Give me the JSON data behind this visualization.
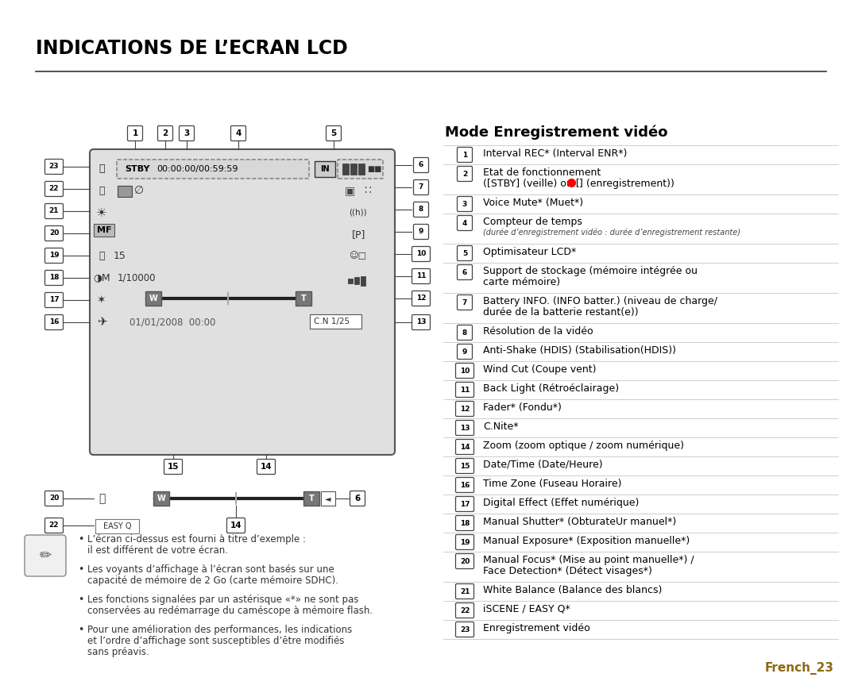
{
  "title": "INDICATIONS DE L’ECRAN LCD",
  "section_title": "Mode Enregistrement vidéo",
  "bg_color": "#ffffff",
  "title_color": "#000000",
  "footer_text": "French_23",
  "footer_color": "#8B6914",
  "items": [
    {
      "num": "1",
      "text1": "Interval REC* (Interval ENR*)",
      "text2": ""
    },
    {
      "num": "2",
      "text1": "Etat de fonctionnement",
      "text2": "([STBY] (veille) ou [●] (enregistrement))"
    },
    {
      "num": "3",
      "text1": "Voice Mute* (Muet*)",
      "text2": ""
    },
    {
      "num": "4",
      "text1": "Compteur de temps",
      "text2": "(durée d’enregistrement vidéo : durée d’enregistrement restante)"
    },
    {
      "num": "5",
      "text1": "Optimisateur LCD*",
      "text2": ""
    },
    {
      "num": "6",
      "text1": "Support de stockage (mémoire intégrée ou",
      "text2": "carte mémoire)"
    },
    {
      "num": "7",
      "text1": "Battery INFO. (INFO batter.) (niveau de charge/",
      "text2": "durée de la batterie restant(e))"
    },
    {
      "num": "8",
      "text1": "Résolution de la vidéo",
      "text2": ""
    },
    {
      "num": "9",
      "text1": "Anti-Shake (HDIS) (Stabilisation(HDIS))",
      "text2": ""
    },
    {
      "num": "10",
      "text1": "Wind Cut (Coupe vent)",
      "text2": ""
    },
    {
      "num": "11",
      "text1": "Back Light (Rétroéclairage)",
      "text2": ""
    },
    {
      "num": "12",
      "text1": "Fader* (Fondu*)",
      "text2": ""
    },
    {
      "num": "13",
      "text1": "C.Nite*",
      "text2": ""
    },
    {
      "num": "14",
      "text1": "Zoom (zoom optique / zoom numérique)",
      "text2": ""
    },
    {
      "num": "15",
      "text1": "Date/Time (Date/Heure)",
      "text2": ""
    },
    {
      "num": "16",
      "text1": "Time Zone (Fuseau Horaire)",
      "text2": ""
    },
    {
      "num": "17",
      "text1": "Digital Effect (Effet numérique)",
      "text2": ""
    },
    {
      "num": "18",
      "text1": "Manual Shutter* (ObturateUr manuel*)",
      "text2": ""
    },
    {
      "num": "19",
      "text1": "Manual Exposure* (Exposition manuelle*)",
      "text2": ""
    },
    {
      "num": "20",
      "text1": "Manual Focus* (Mise au point manuelle*) /",
      "text2": "Face Detection* (Détect visages*)"
    },
    {
      "num": "21",
      "text1": "White Balance (Balance des blancs)",
      "text2": ""
    },
    {
      "num": "22",
      "text1": "iSCENE / EASY Q*",
      "text2": ""
    },
    {
      "num": "23",
      "text1": "Enregistrement vidéo",
      "text2": ""
    }
  ],
  "bullet_points": [
    [
      "L’écran ci-dessus est fourni à titre d’exemple :",
      "il est différent de votre écran."
    ],
    [
      "Les voyants d’affichage à l’écran sont basés sur une",
      "capacité de mémoire de 2 Go (carte mémoire SDHC)."
    ],
    [
      "Les fonctions signalées par un astérisque «*» ne sont pas",
      "conservées au redémarrage du caméscope à mémoire flash."
    ],
    [
      "Pour une amélioration des performances, les indications",
      "et l’ordre d’affichage sont susceptibles d’être modifiés",
      "sans préavis."
    ]
  ]
}
